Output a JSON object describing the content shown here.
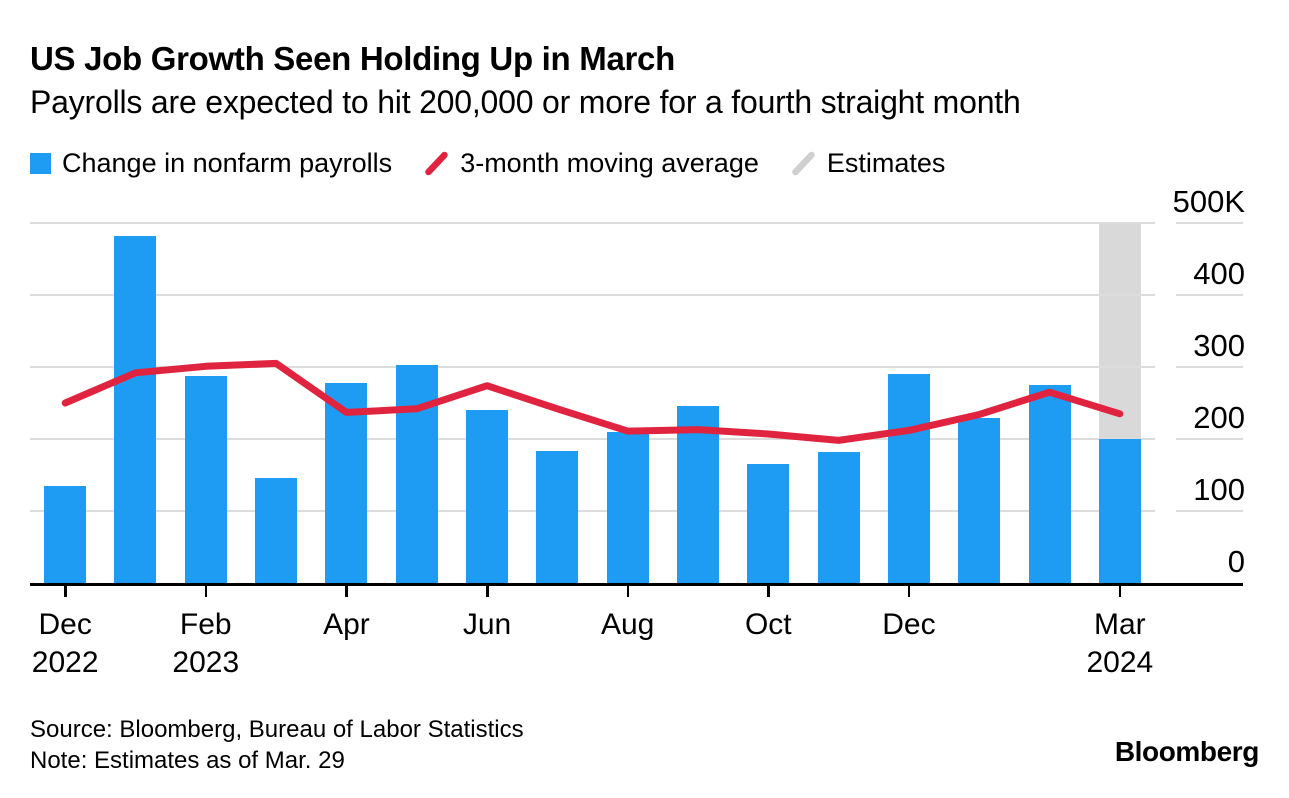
{
  "header": {
    "title": "US Job Growth Seen Holding Up in March",
    "subtitle": "Payrolls are expected to hit 200,000 or more for a fourth straight month"
  },
  "legend": {
    "items": [
      {
        "label": "Change in nonfarm payrolls",
        "swatch": "square",
        "color": "#1E9BF2"
      },
      {
        "label": "3-month moving average",
        "swatch": "slash",
        "color": "#E0243F"
      },
      {
        "label": "Estimates",
        "swatch": "slash",
        "color": "#CFCFCF"
      }
    ]
  },
  "chart_data": {
    "type": "bar",
    "title": "US Job Growth Seen Holding Up in March",
    "subtitle": "Payrolls are expected to hit 200,000 or more for a fourth straight month",
    "categories": [
      "Dec 2022",
      "Jan 2023",
      "Feb 2023",
      "Mar 2023",
      "Apr 2023",
      "May 2023",
      "Jun 2023",
      "Jul 2023",
      "Aug 2023",
      "Sep 2023",
      "Oct 2023",
      "Nov 2023",
      "Dec 2023",
      "Jan 2024",
      "Feb 2024",
      "Mar 2024"
    ],
    "series": [
      {
        "name": "Change in nonfarm payrolls",
        "type": "bar",
        "color": "#1E9BF2",
        "values": [
          135,
          482,
          287,
          146,
          278,
          303,
          240,
          184,
          210,
          246,
          165,
          182,
          290,
          229,
          275,
          200
        ]
      },
      {
        "name": "3-month moving average",
        "type": "line",
        "color": "#E0243F",
        "values": [
          250,
          292,
          301,
          305,
          237,
          242,
          274,
          242,
          211,
          213,
          207,
          198,
          212,
          234,
          265,
          235
        ]
      },
      {
        "name": "Estimates",
        "type": "column-highlight",
        "color": "#D9D9D9",
        "applies_to": [
          "Mar 2024"
        ]
      }
    ],
    "estimate_index": 15,
    "units": "K",
    "grid": true,
    "legend_position": "top",
    "y_axis": {
      "side": "right",
      "min": 0,
      "max": 500,
      "ticks": [
        {
          "value": 500,
          "label": "500K"
        },
        {
          "value": 400,
          "label": "400"
        },
        {
          "value": 300,
          "label": "300"
        },
        {
          "value": 200,
          "label": "200"
        },
        {
          "value": 100,
          "label": "100"
        },
        {
          "value": 0,
          "label": "0"
        }
      ]
    },
    "x_axis": {
      "ticks": [
        {
          "index": 0,
          "lines": [
            "Dec",
            "2022"
          ]
        },
        {
          "index": 2,
          "lines": [
            "Feb",
            "2023"
          ]
        },
        {
          "index": 4,
          "lines": [
            "Apr"
          ]
        },
        {
          "index": 6,
          "lines": [
            "Jun"
          ]
        },
        {
          "index": 8,
          "lines": [
            "Aug"
          ]
        },
        {
          "index": 10,
          "lines": [
            "Oct"
          ]
        },
        {
          "index": 12,
          "lines": [
            "Dec"
          ]
        },
        {
          "index": 15,
          "lines": [
            "Mar",
            "2024"
          ]
        }
      ]
    }
  },
  "colors": {
    "bar_blue": "#1E9BF2",
    "line_red": "#E0243F",
    "estimate_gray": "#D9D9D9",
    "gridline": "#DCDCDC",
    "axis": "#000000"
  },
  "footer": {
    "source": "Source: Bloomberg, Bureau of Labor Statistics",
    "note": "Note: Estimates as of Mar. 29",
    "logo": "Bloomberg"
  }
}
